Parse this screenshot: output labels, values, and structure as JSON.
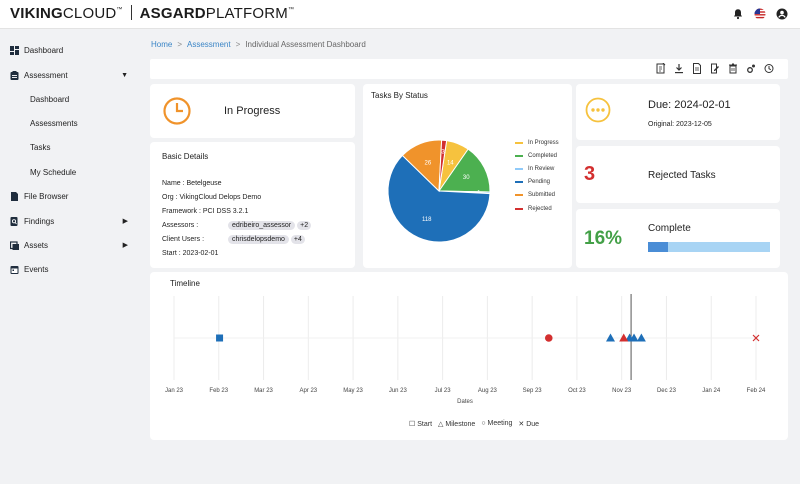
{
  "brand": {
    "part1": "VIKING",
    "part2": "CLOUD",
    "part3": "ASGARD",
    "part4": "PLATFORM",
    "tm": "™"
  },
  "colors": {
    "accent": "#3a85c6",
    "in_progress": "#f6c23e",
    "completed": "#4cb050",
    "in_review": "#90caf9",
    "pending": "#1e6fb8",
    "submitted": "#f0932b",
    "rejected": "#d32f2f"
  },
  "topbar": {
    "icons": [
      "bell-icon",
      "us-flag-icon",
      "user-account-icon"
    ]
  },
  "sidebar": {
    "items": [
      {
        "label": "Dashboard",
        "icon": "dashboard-icon"
      },
      {
        "label": "Assessment",
        "icon": "clipboard-icon",
        "expanded": true
      },
      {
        "label": "File Browser",
        "icon": "file-icon"
      },
      {
        "label": "Findings",
        "icon": "search-doc-icon"
      },
      {
        "label": "Assets",
        "icon": "assets-icon"
      },
      {
        "label": "Events",
        "icon": "calendar-icon"
      }
    ],
    "sub_items": [
      "Dashboard",
      "Assessments",
      "Tasks",
      "My Schedule"
    ]
  },
  "breadcrumb": {
    "home": "Home",
    "assessment": "Assessment",
    "current": "Individual Assessment Dashboard",
    "sep": ">"
  },
  "toolbar": {
    "icons": [
      "report-icon",
      "download-icon",
      "document-icon",
      "edit-icon",
      "delete-icon",
      "settings-icon",
      "history-icon"
    ]
  },
  "status": {
    "label": "In Progress"
  },
  "details": {
    "title": "Basic Details",
    "name_label": "Name :",
    "name": "Betelgeuse",
    "org_label": "Org :",
    "org": "VikingCloud Delops Demo",
    "framework_label": "Framework :",
    "framework": "PCI DSS 3.2.1",
    "assessors_label": "Assessors :",
    "assessor": "edribeiro_assessor",
    "assessor_more": "+2",
    "clients_label": "Client Users :",
    "client": "chrisdelopsdemo",
    "client_more": "+4",
    "start_label": "Start :",
    "start": "2023-02-01"
  },
  "pie": {
    "title": "Tasks By Status"
  },
  "chart_data": [
    {
      "type": "pie",
      "title": "Tasks By Status",
      "categories": [
        "In Progress",
        "Completed",
        "In Review",
        "Pending",
        "Submitted",
        "Rejected"
      ],
      "values": [
        14,
        30,
        1,
        118,
        26,
        3
      ],
      "legend": "right"
    },
    {
      "type": "scatter",
      "title": "Timeline",
      "xlabel": "Dates",
      "x_ticks": [
        "Jan 23",
        "Feb 23",
        "Mar 23",
        "Apr 23",
        "May 23",
        "Jun 23",
        "Jul 23",
        "Aug 23",
        "Sep 23",
        "Oct 23",
        "Nov 23",
        "Dec 23",
        "Jan 24",
        "Feb 24"
      ],
      "xlim": [
        "2023-01-01",
        "2024-02-01"
      ],
      "current_date_line": "2023-11-08",
      "series": [
        {
          "name": "Start",
          "marker": "square",
          "color": "#1e6fb8",
          "x": [
            "2023-02-01"
          ]
        },
        {
          "name": "Milestone",
          "marker": "triangle",
          "color": "#1e6fb8",
          "x": [
            "2023-10-25",
            "2023-11-07",
            "2023-11-10",
            "2023-11-15"
          ]
        },
        {
          "name": "Milestone",
          "marker": "triangle",
          "color": "#d32f2f",
          "x": [
            "2023-11-03"
          ]
        },
        {
          "name": "Meeting",
          "marker": "circle",
          "color": "#d32f2f",
          "x": [
            "2023-09-13"
          ]
        },
        {
          "name": "Due",
          "marker": "x",
          "color": "#d32f2f",
          "x": [
            "2024-02-01"
          ]
        }
      ],
      "legend": "bottom"
    }
  ],
  "due": {
    "label": "Due: 2024-02-01",
    "original": "Original: 2023-12-05"
  },
  "rejected": {
    "count": "3",
    "label": "Rejected Tasks"
  },
  "complete": {
    "percent": "16%",
    "label": "Complete",
    "fraction": 0.16
  },
  "timeline": {
    "title": "Timeline",
    "legend": {
      "start": "Start",
      "milestone": "Milestone",
      "meeting": "Meeting",
      "due": "Due"
    }
  }
}
